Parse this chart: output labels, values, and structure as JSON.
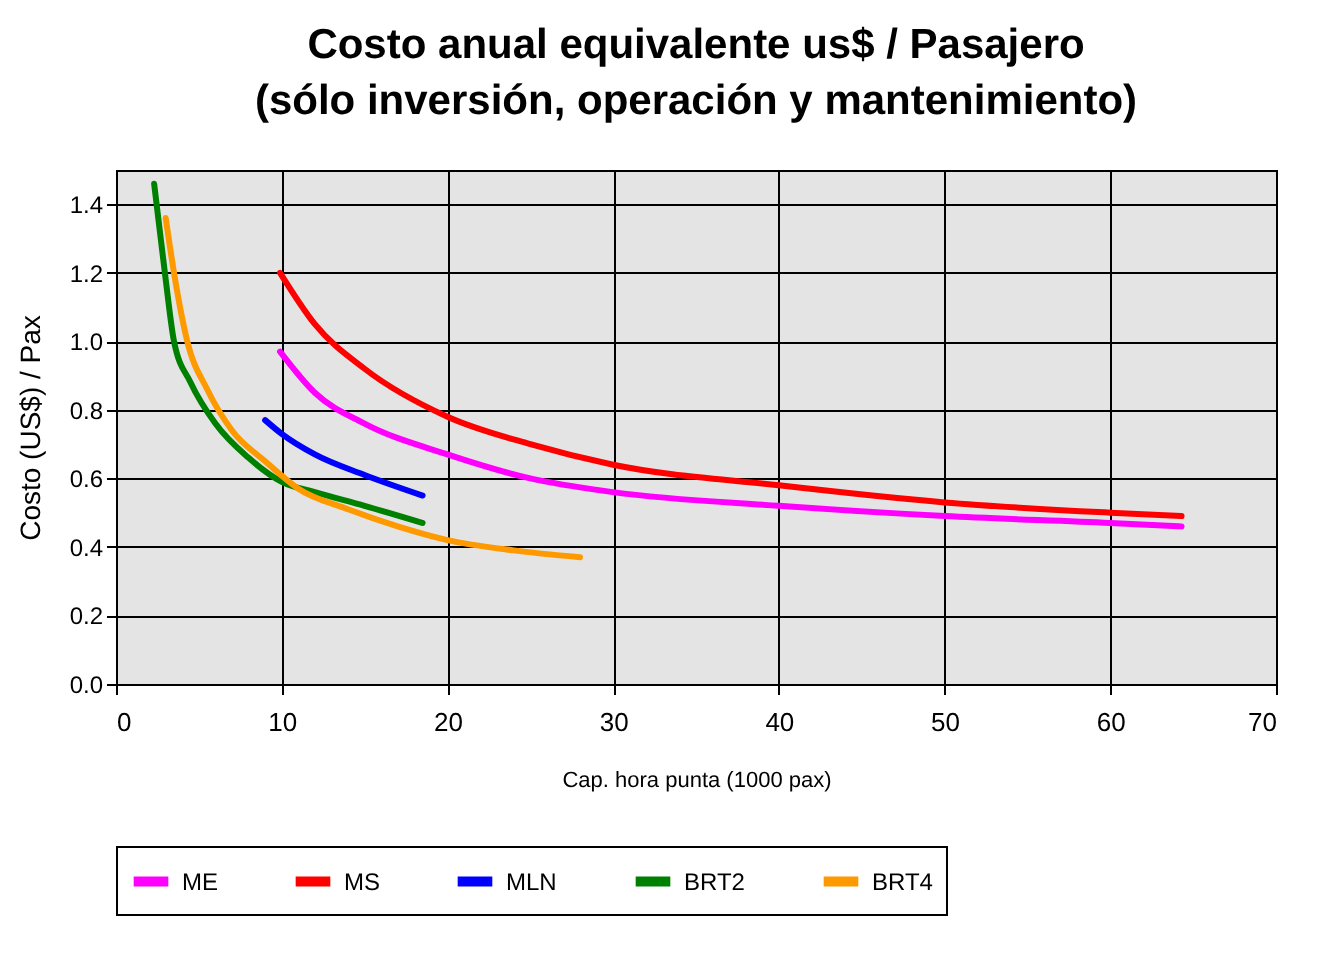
{
  "chart_data": {
    "type": "line",
    "title": "Costo anual equivalente us$ / Pasajero\n(sólo inversión, operación y mantenimiento)",
    "xlabel": "Cap. hora punta (1000 pax)",
    "ylabel": "Costo (US$) / Pax",
    "xlim": [
      0,
      70
    ],
    "xticks": [
      0,
      10,
      20,
      30,
      40,
      50,
      60,
      70
    ],
    "ylim": [
      0,
      1.5
    ],
    "yticks": [
      {
        "value": 0,
        "label": "0.0"
      },
      0.2,
      0.4,
      0.6,
      0.8,
      {
        "value": 1,
        "label": "1.0"
      },
      1.2,
      1.4
    ],
    "grid": true,
    "legend": "bottom",
    "series": [
      {
        "name": "ME",
        "color": "#ff00ff",
        "x": [
          9.9,
          12,
          15,
          20,
          25,
          30,
          40,
          50,
          60,
          64.3
        ],
        "values": [
          0.97,
          0.85,
          0.76,
          0.67,
          0.6,
          0.56,
          0.52,
          0.49,
          0.47,
          0.46
        ]
      },
      {
        "name": "MS",
        "color": "#ff0000",
        "x": [
          9.9,
          12,
          15,
          20,
          25,
          30,
          40,
          50,
          60,
          64.3
        ],
        "values": [
          1.2,
          1.05,
          0.92,
          0.78,
          0.7,
          0.64,
          0.58,
          0.53,
          0.5,
          0.49
        ]
      },
      {
        "name": "MLN",
        "color": "#0000ff",
        "x": [
          9,
          10,
          12,
          15,
          18.5
        ],
        "values": [
          0.77,
          0.73,
          0.67,
          0.61,
          0.55
        ]
      },
      {
        "name": "BRT2",
        "color": "#008000",
        "x": [
          2.3,
          2.7,
          3,
          3.5,
          4.5,
          6,
          8,
          10,
          12,
          15,
          18.5
        ],
        "values": [
          1.46,
          1.3,
          1.18,
          1.0,
          0.88,
          0.76,
          0.66,
          0.59,
          0.56,
          0.52,
          0.47
        ]
      },
      {
        "name": "BRT4",
        "color": "#ff9900",
        "x": [
          3,
          3.5,
          4.3,
          5.5,
          7,
          9,
          11,
          14,
          17,
          20,
          24,
          28
        ],
        "values": [
          1.36,
          1.2,
          1.0,
          0.86,
          0.74,
          0.65,
          0.57,
          0.51,
          0.46,
          0.42,
          0.39,
          0.37
        ]
      }
    ]
  }
}
